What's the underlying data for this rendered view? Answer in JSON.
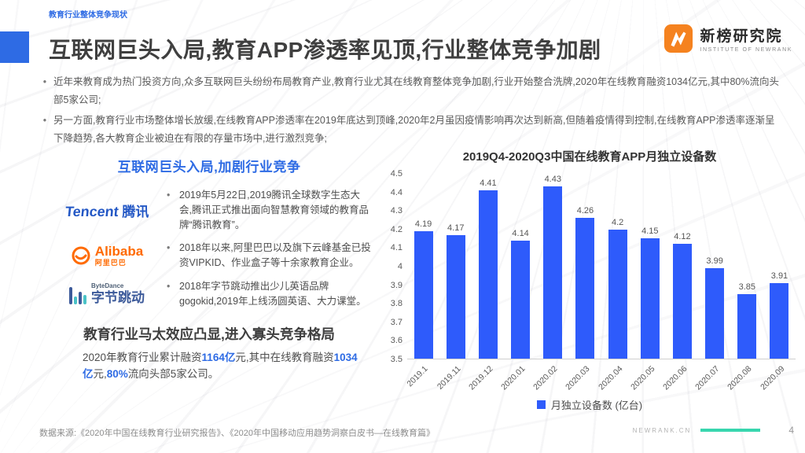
{
  "colors": {
    "accent": "#2E6BE4",
    "bar": "#2E5BFB",
    "teal": "#38D6AE",
    "brand": "#F5821F",
    "tencent": "#2458C5",
    "alibaba": "#FF6A00",
    "byte_navy": "#3C5A9A",
    "byte_teal": "#4AC3C7"
  },
  "page": {
    "breadcrumb": "教育行业整体竞争现状",
    "title": "互联网巨头入局,教育APP渗透率见顶,行业整体竞争加剧",
    "page_number": "4",
    "footer_source": "数据来源:《2020年中国在线教育行业研究报告》、《2020年中国移动应用趋势洞察白皮书—在线教育篇》",
    "footer_site": "NEWRANK.CN"
  },
  "brand": {
    "name": "新榜研究院",
    "subtitle": "INSTITUTE OF NEWRANK"
  },
  "bullets": [
    "近年来教育成为热门投资方向,众多互联网巨头纷纷布局教育产业,教育行业尤其在线教育整体竞争加剧,行业开始整合洗牌,2020年在线教育融资1034亿元,其中80%流向头部5家公司;",
    "另一方面,教育行业市场整体增长放缓,在线教育APP渗透率在2019年底达到顶峰,2020年2月虽因疫情影响再次达到新高,但随着疫情得到控制,在线教育APP渗透率逐渐呈下降趋势,各大教育企业被迫在有限的存量市场中,进行激烈竞争;"
  ],
  "left_panel": {
    "heading": "互联网巨头入局,加剧行业竞争",
    "companies": [
      {
        "name_en": "Tencent",
        "name_cn": "腾讯",
        "desc": "2019年5月22日,2019腾讯全球数字生态大会,腾讯正式推出面向智慧教育领域的教育品牌“腾讯教育”。"
      },
      {
        "name_en": "Alibaba",
        "name_cn": "阿里巴巴",
        "desc": "2018年以来,阿里巴巴以及旗下云峰基金已投资VIPKID、作业盒子等十余家教育企业。"
      },
      {
        "name_en": "ByteDance",
        "name_cn": "字节跳动",
        "desc": "2018年字节跳动推出少儿英语品牌gogokid,2019年上线汤圆英语、大力课堂。"
      }
    ],
    "oligopoly_heading": "教育行业马太效应凸显,进入寡头竞争格局",
    "oligopoly_segments": [
      "2020年教育行业累计融资",
      "1164亿",
      "元,其中在线教育融",
      "资",
      "1034亿",
      "元,",
      "80%",
      "流向头部5家公司。"
    ]
  },
  "chart_data": {
    "type": "bar",
    "title": "2019Q4-2020Q3中国在线教育APP月独立设备数",
    "categories": [
      "2019.1",
      "2019.11",
      "2019.12",
      "2020.01",
      "2020.02",
      "2020.03",
      "2020.04",
      "2020.05",
      "2020.06",
      "2020.07",
      "2020.08",
      "2020.09"
    ],
    "values": [
      4.19,
      4.17,
      4.41,
      4.14,
      4.43,
      4.26,
      4.2,
      4.15,
      4.12,
      3.99,
      3.85,
      3.91
    ],
    "ylim": [
      3.5,
      4.5
    ],
    "yticks": [
      4.5,
      4.4,
      4.3,
      4.2,
      4.1,
      4,
      3.9,
      3.8,
      3.7,
      3.6,
      3.5
    ],
    "legend": "月独立设备数 (亿台)",
    "xlabel": "",
    "ylabel": "",
    "grid": false,
    "legend_position": "bottom",
    "bar_color": "#2E5BFB"
  }
}
